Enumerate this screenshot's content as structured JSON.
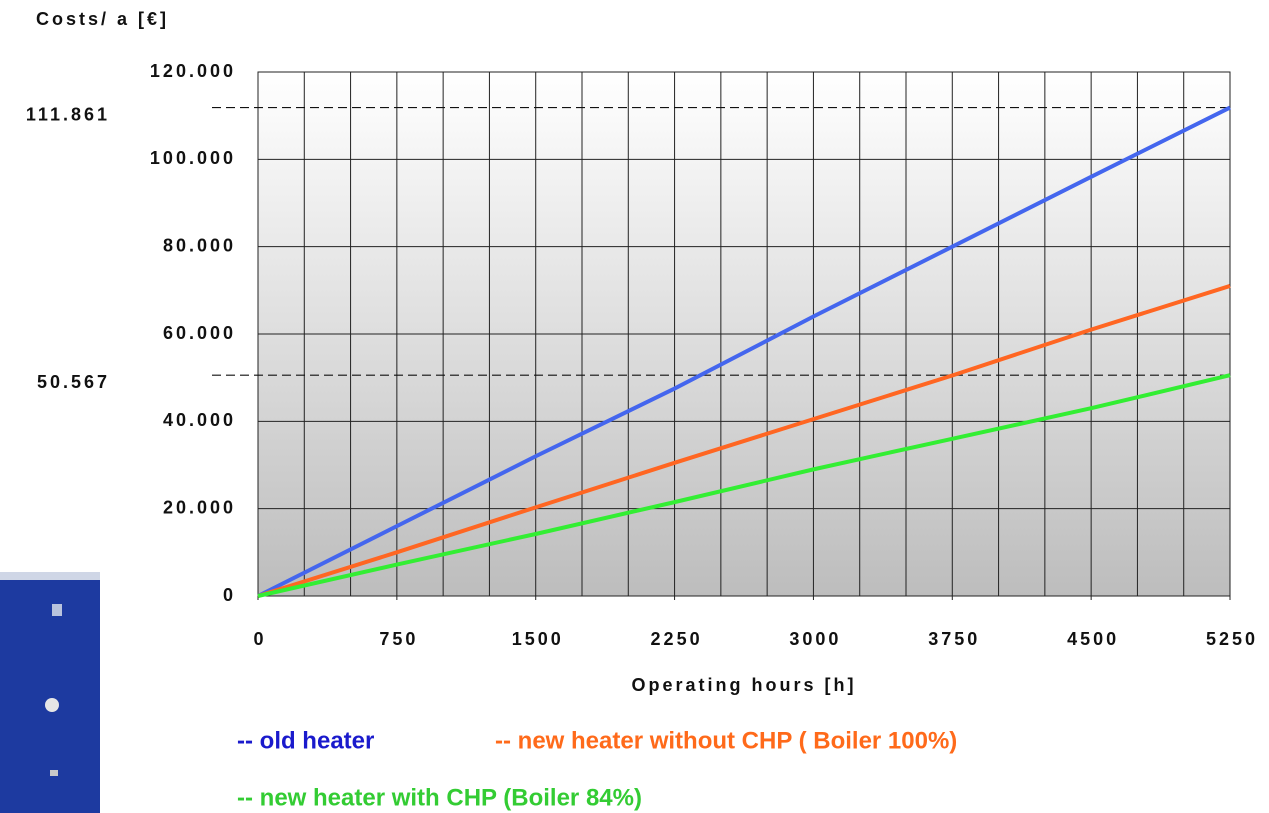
{
  "chart_data": {
    "type": "line",
    "y_label": "Costs/ a [€]",
    "x_label": "Operating hours [h]",
    "x": [
      0,
      750,
      1500,
      2250,
      3000,
      3750,
      4500,
      5250
    ],
    "series": [
      {
        "name": "-- old heater",
        "color": "#4466ee",
        "legend_color": "#1a1acc",
        "values": [
          0,
          16000,
          32000,
          47500,
          64000,
          80000,
          96000,
          111861
        ]
      },
      {
        "name": "-- new heater without CHP ( Boiler 100%)",
        "color": "#ff6622",
        "legend_color": "#ff6a1a",
        "values": [
          0,
          10000,
          20300,
          30500,
          40500,
          50500,
          61000,
          71000
        ]
      },
      {
        "name": "-- new heater with CHP (Boiler 84%)",
        "color": "#33ee33",
        "legend_color": "#33cc33",
        "values": [
          0,
          7200,
          14200,
          21500,
          29000,
          36000,
          43000,
          50567
        ]
      }
    ],
    "xlim": [
      0,
      5250
    ],
    "xticks": [
      0,
      750,
      1500,
      2250,
      3000,
      3750,
      4500,
      5250
    ],
    "x_grid_step": 250,
    "ylim": [
      0,
      120000
    ],
    "yticks": [
      {
        "value": 0,
        "label": "0"
      },
      {
        "value": 20000,
        "label": "20.000"
      },
      {
        "value": 40000,
        "label": "40.000"
      },
      {
        "value": 60000,
        "label": "60.000"
      },
      {
        "value": 80000,
        "label": "80.000"
      },
      {
        "value": 100000,
        "label": "100.000"
      },
      {
        "value": 120000,
        "label": "120.000"
      }
    ],
    "grid": true,
    "annotations": [
      {
        "value": 111861,
        "label": "111.861"
      },
      {
        "value": 50567,
        "label": "50.567"
      }
    ]
  }
}
